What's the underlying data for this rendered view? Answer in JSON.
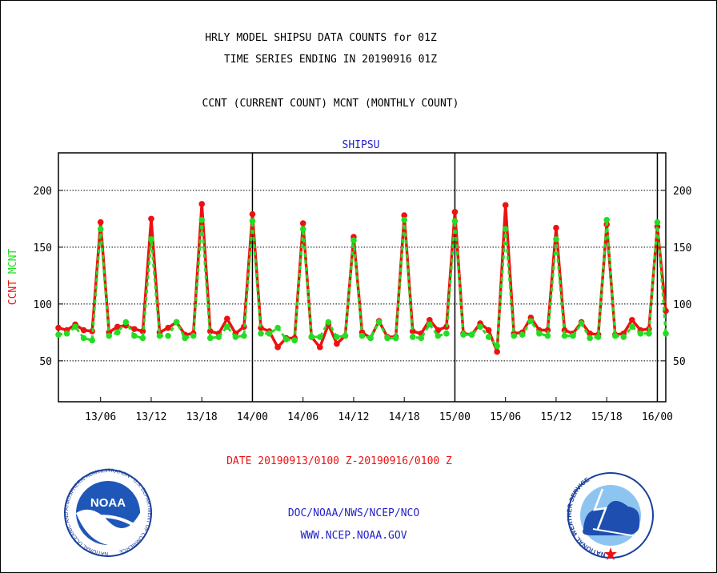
{
  "header": {
    "line1": "HRLY MODEL SHIPSU DATA COUNTS for 01Z",
    "line2": "TIME SERIES ENDING IN 20190916 01Z",
    "line3": "CCNT (CURRENT COUNT) MCNT (MONTHLY COUNT)"
  },
  "footer": {
    "date_range": "DATE 20190913/0100 Z-20190916/0100 Z",
    "org": "DOC/NOAA/NWS/NCEP/NCO",
    "url": "WWW.NCEP.NOAA.GOV"
  },
  "logos": {
    "noaa_text": "NOAA",
    "noaa_ring_text": "NATIONAL OCEANIC AND ATMOSPHERIC ADMINISTRATION · U.S. DEPARTMENT OF COMMERCE",
    "nws_ring_text": "NATIONAL WEATHER SERVICE"
  },
  "colors": {
    "ccnt": "#ee1111",
    "mcnt": "#22dd22",
    "title": "#2222cc",
    "date": "#ee1111"
  },
  "chart_data": {
    "type": "line",
    "title": "SHIPSU",
    "ylabel_parts": [
      {
        "text": "CCNT",
        "color": "#ee1111"
      },
      {
        "text": "MCNT",
        "color": "#22dd22"
      }
    ],
    "ylim": [
      14,
      233
    ],
    "yticks": [
      50,
      100,
      150,
      200
    ],
    "xlim": [
      0,
      72
    ],
    "xticks": [
      {
        "x": 5,
        "label": "13/06"
      },
      {
        "x": 11,
        "label": "13/12"
      },
      {
        "x": 17,
        "label": "13/18"
      },
      {
        "x": 23,
        "label": "14/00"
      },
      {
        "x": 29,
        "label": "14/06"
      },
      {
        "x": 35,
        "label": "14/12"
      },
      {
        "x": 41,
        "label": "14/18"
      },
      {
        "x": 47,
        "label": "15/00"
      },
      {
        "x": 53,
        "label": "15/06"
      },
      {
        "x": 59,
        "label": "15/12"
      },
      {
        "x": 65,
        "label": "15/18"
      },
      {
        "x": 71,
        "label": "16/00"
      }
    ],
    "day_boundaries": [
      23,
      47,
      71
    ],
    "grid": true,
    "series": [
      {
        "name": "CCNT",
        "color": "#ee1111",
        "values": [
          79,
          77,
          82,
          77,
          76,
          172,
          75,
          80,
          81,
          78,
          76,
          175,
          75,
          79,
          84,
          73,
          74,
          188,
          76,
          74,
          87,
          74,
          80,
          179,
          79,
          76,
          62,
          70,
          70,
          171,
          71,
          62,
          82,
          65,
          72,
          159,
          75,
          70,
          85,
          71,
          71,
          178,
          76,
          74,
          86,
          77,
          80,
          181,
          74,
          73,
          83,
          77,
          58,
          187,
          74,
          75,
          88,
          77,
          77,
          167,
          77,
          74,
          84,
          74,
          73,
          170,
          73,
          74,
          86,
          77,
          78,
          168,
          94
        ]
      },
      {
        "name": "MCNT",
        "color": "#22dd22",
        "values": [
          73,
          74,
          80,
          70,
          68,
          166,
          72,
          75,
          84,
          72,
          70,
          157,
          72,
          72,
          84,
          70,
          72,
          174,
          70,
          71,
          80,
          71,
          72,
          173,
          74,
          74,
          79,
          69,
          68,
          166,
          71,
          71,
          84,
          71,
          72,
          156,
          72,
          70,
          84,
          70,
          70,
          174,
          71,
          70,
          82,
          72,
          74,
          173,
          73,
          73,
          80,
          71,
          63,
          166,
          72,
          73,
          85,
          74,
          72,
          157,
          72,
          72,
          83,
          70,
          71,
          174,
          72,
          71,
          80,
          74,
          74,
          172,
          74
        ]
      }
    ]
  }
}
